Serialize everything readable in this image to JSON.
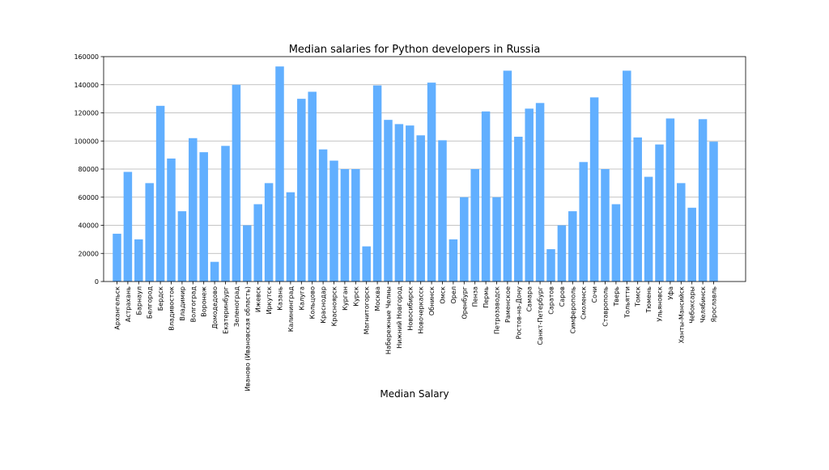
{
  "chart_data": {
    "type": "bar",
    "title": "Median salaries for Python developers in Russia",
    "xlabel": "Median Salary",
    "ylabel": "",
    "ylim": [
      0,
      160000
    ],
    "yticks": [
      0,
      20000,
      40000,
      60000,
      80000,
      100000,
      120000,
      140000,
      160000
    ],
    "ytick_labels": [
      "0",
      "20000",
      "40000",
      "60000",
      "80000",
      "100000",
      "120000",
      "140000",
      "160000"
    ],
    "grid": "horizontal",
    "bar_color": "#61afff",
    "categories": [
      "Архангельск",
      "Астрахань",
      "Барнаул",
      "Белгород",
      "Бердск",
      "Владивосток",
      "Владимир",
      "Волгоград",
      "Воронеж",
      "Домодедово",
      "Екатеринбург",
      "Зеленоград",
      "Иваново (Ивановская область)",
      "Ижевск",
      "Иркутск",
      "Казань",
      "Калининград",
      "Калуга",
      "Кольцово",
      "Краснодар",
      "Красноярск",
      "Курган",
      "Курск",
      "Магнитогорск",
      "Москва",
      "Набережные Челны",
      "Нижний Новгород",
      "Новосибирск",
      "Новочеркасск",
      "Обнинск",
      "Омск",
      "Орел",
      "Оренбург",
      "Пенза",
      "Пермь",
      "Петрозаводск",
      "Раменское",
      "Ростов-на-Дону",
      "Самара",
      "Санкт-Петербург",
      "Саратов",
      "Саров",
      "Симферополь",
      "Смоленск",
      "Сочи",
      "Ставрополь",
      "Тверь",
      "Тольятти",
      "Томск",
      "Тюмень",
      "Ульяновск",
      "Уфа",
      "Ханты-Мансийск",
      "Чебоксары",
      "Челябинск",
      "Ярославль"
    ],
    "values": [
      34000,
      78000,
      30000,
      70000,
      125000,
      87500,
      50000,
      102000,
      92000,
      14000,
      96500,
      140000,
      40000,
      55000,
      70000,
      153000,
      63500,
      130000,
      135000,
      94000,
      86000,
      80000,
      80000,
      25000,
      139500,
      115000,
      112000,
      111000,
      104000,
      141500,
      100500,
      30000,
      60000,
      80000,
      121000,
      60000,
      150000,
      103000,
      123000,
      127000,
      23000,
      40000,
      50000,
      85000,
      131000,
      80000,
      55000,
      150000,
      102500,
      74500,
      97500,
      116000,
      70000,
      52500,
      115500,
      99500
    ]
  }
}
